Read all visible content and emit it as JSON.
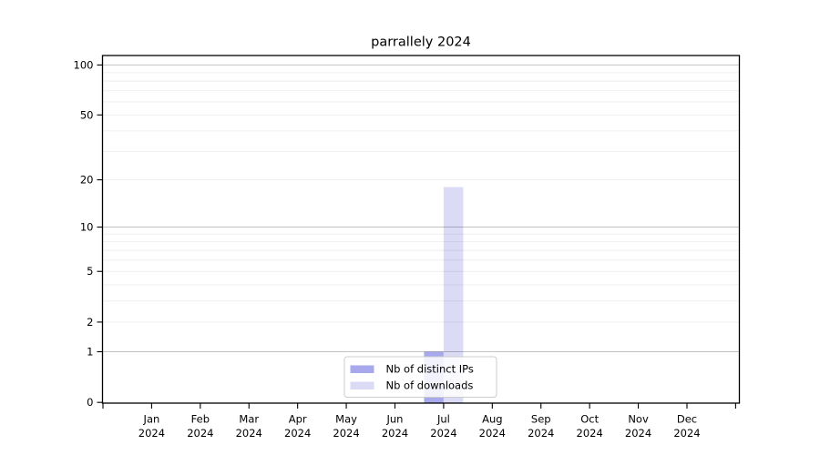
{
  "title": "parrallely 2024",
  "chart_data": {
    "type": "bar",
    "title": "parrallely 2024",
    "categories": [
      "Jan 2024",
      "Feb 2024",
      "Mar 2024",
      "Apr 2024",
      "May 2024",
      "Jun 2024",
      "Jul 2024",
      "Aug 2024",
      "Sep 2024",
      "Oct 2024",
      "Nov 2024",
      "Dec 2024"
    ],
    "x_tick_line1": [
      "Jan",
      "Feb",
      "Mar",
      "Apr",
      "May",
      "Jun",
      "Jul",
      "Aug",
      "Sep",
      "Oct",
      "Nov",
      "Dec"
    ],
    "x_tick_line2": [
      "2024",
      "2024",
      "2024",
      "2024",
      "2024",
      "2024",
      "2024",
      "2024",
      "2024",
      "2024",
      "2024",
      "2024"
    ],
    "series": [
      {
        "name": "Nb of distinct IPs",
        "color": "#a8a8ec",
        "values": [
          0,
          0,
          0,
          0,
          0,
          0,
          1,
          0,
          0,
          0,
          0,
          0
        ]
      },
      {
        "name": "Nb of downloads",
        "color": "#dbdbf6",
        "values": [
          0,
          0,
          0,
          0,
          0,
          0,
          18,
          0,
          0,
          0,
          0,
          0
        ]
      }
    ],
    "xlabel": "",
    "ylabel": "",
    "yscale": "log1p",
    "ylim": [
      0,
      114
    ],
    "y_ticks": [
      0,
      1,
      2,
      5,
      10,
      20,
      50,
      100
    ],
    "y_major_gridlines": [
      1,
      10,
      100
    ],
    "y_minor_gridlines": [
      2,
      3,
      4,
      5,
      6,
      7,
      8,
      9,
      20,
      30,
      40,
      50,
      60,
      70,
      80,
      90
    ],
    "grid": true,
    "legend_position": "lower center",
    "legend": [
      "Nb of distinct IPs",
      "Nb of downloads"
    ]
  },
  "colors": {
    "background": "#ffffff",
    "spine": "#000000",
    "major_grid": "rgba(0,0,0,0.24)",
    "minor_grid": "rgba(0,0,0,0.07)",
    "legend_border": "#cccccc",
    "legend_bg": "#ffffff",
    "text": "#000000"
  }
}
